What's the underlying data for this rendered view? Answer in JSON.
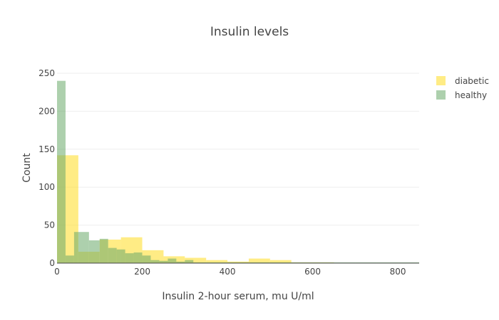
{
  "chart_data": {
    "type": "bar",
    "title": "Insulin levels",
    "xlabel": "Insulin 2-hour serum, mu U/ml",
    "ylabel": "Count",
    "xlim": [
      0,
      850
    ],
    "ylim": [
      0,
      250
    ],
    "x_ticks": [
      0,
      200,
      400,
      600,
      800
    ],
    "y_ticks": [
      0,
      50,
      100,
      150,
      200,
      250
    ],
    "grid": true,
    "barmode": "overlay",
    "legend_position": "top-right",
    "series": [
      {
        "name": "diabetic",
        "color": "#ffe033",
        "opacity": 0.6,
        "bins": [
          {
            "x0": 0,
            "x1": 20,
            "count": 142
          },
          {
            "x0": 20,
            "x1": 50,
            "count": 142
          },
          {
            "x0": 50,
            "x1": 100,
            "count": 15
          },
          {
            "x0": 100,
            "x1": 120,
            "count": 31
          },
          {
            "x0": 120,
            "x1": 150,
            "count": 31
          },
          {
            "x0": 150,
            "x1": 200,
            "count": 34
          },
          {
            "x0": 200,
            "x1": 250,
            "count": 17
          },
          {
            "x0": 250,
            "x1": 300,
            "count": 9
          },
          {
            "x0": 300,
            "x1": 350,
            "count": 7
          },
          {
            "x0": 350,
            "x1": 400,
            "count": 4
          },
          {
            "x0": 400,
            "x1": 450,
            "count": 2
          },
          {
            "x0": 450,
            "x1": 500,
            "count": 6
          },
          {
            "x0": 500,
            "x1": 550,
            "count": 4
          },
          {
            "x0": 550,
            "x1": 600,
            "count": 1
          },
          {
            "x0": 600,
            "x1": 650,
            "count": 1
          },
          {
            "x0": 650,
            "x1": 850,
            "count": 0
          }
        ]
      },
      {
        "name": "healthy",
        "color": "#6aaa6a",
        "opacity": 0.55,
        "bins": [
          {
            "x0": 0,
            "x1": 20,
            "count": 240
          },
          {
            "x0": 20,
            "x1": 40,
            "count": 10
          },
          {
            "x0": 40,
            "x1": 50,
            "count": 41
          },
          {
            "x0": 50,
            "x1": 75,
            "count": 41
          },
          {
            "x0": 75,
            "x1": 100,
            "count": 30
          },
          {
            "x0": 100,
            "x1": 120,
            "count": 32
          },
          {
            "x0": 120,
            "x1": 140,
            "count": 20
          },
          {
            "x0": 140,
            "x1": 160,
            "count": 18
          },
          {
            "x0": 160,
            "x1": 180,
            "count": 13
          },
          {
            "x0": 180,
            "x1": 200,
            "count": 14
          },
          {
            "x0": 200,
            "x1": 220,
            "count": 10
          },
          {
            "x0": 220,
            "x1": 240,
            "count": 4
          },
          {
            "x0": 240,
            "x1": 260,
            "count": 3
          },
          {
            "x0": 260,
            "x1": 280,
            "count": 6
          },
          {
            "x0": 280,
            "x1": 300,
            "count": 2
          },
          {
            "x0": 300,
            "x1": 320,
            "count": 4
          },
          {
            "x0": 320,
            "x1": 340,
            "count": 1
          },
          {
            "x0": 340,
            "x1": 360,
            "count": 1
          },
          {
            "x0": 360,
            "x1": 380,
            "count": 1
          },
          {
            "x0": 380,
            "x1": 400,
            "count": 1
          },
          {
            "x0": 400,
            "x1": 420,
            "count": 1
          },
          {
            "x0": 420,
            "x1": 450,
            "count": 1
          },
          {
            "x0": 450,
            "x1": 500,
            "count": 1
          },
          {
            "x0": 500,
            "x1": 550,
            "count": 1
          },
          {
            "x0": 550,
            "x1": 600,
            "count": 1
          },
          {
            "x0": 600,
            "x1": 650,
            "count": 1
          },
          {
            "x0": 650,
            "x1": 700,
            "count": 1
          },
          {
            "x0": 700,
            "x1": 750,
            "count": 1
          },
          {
            "x0": 750,
            "x1": 800,
            "count": 1
          },
          {
            "x0": 800,
            "x1": 850,
            "count": 1
          }
        ]
      }
    ]
  }
}
